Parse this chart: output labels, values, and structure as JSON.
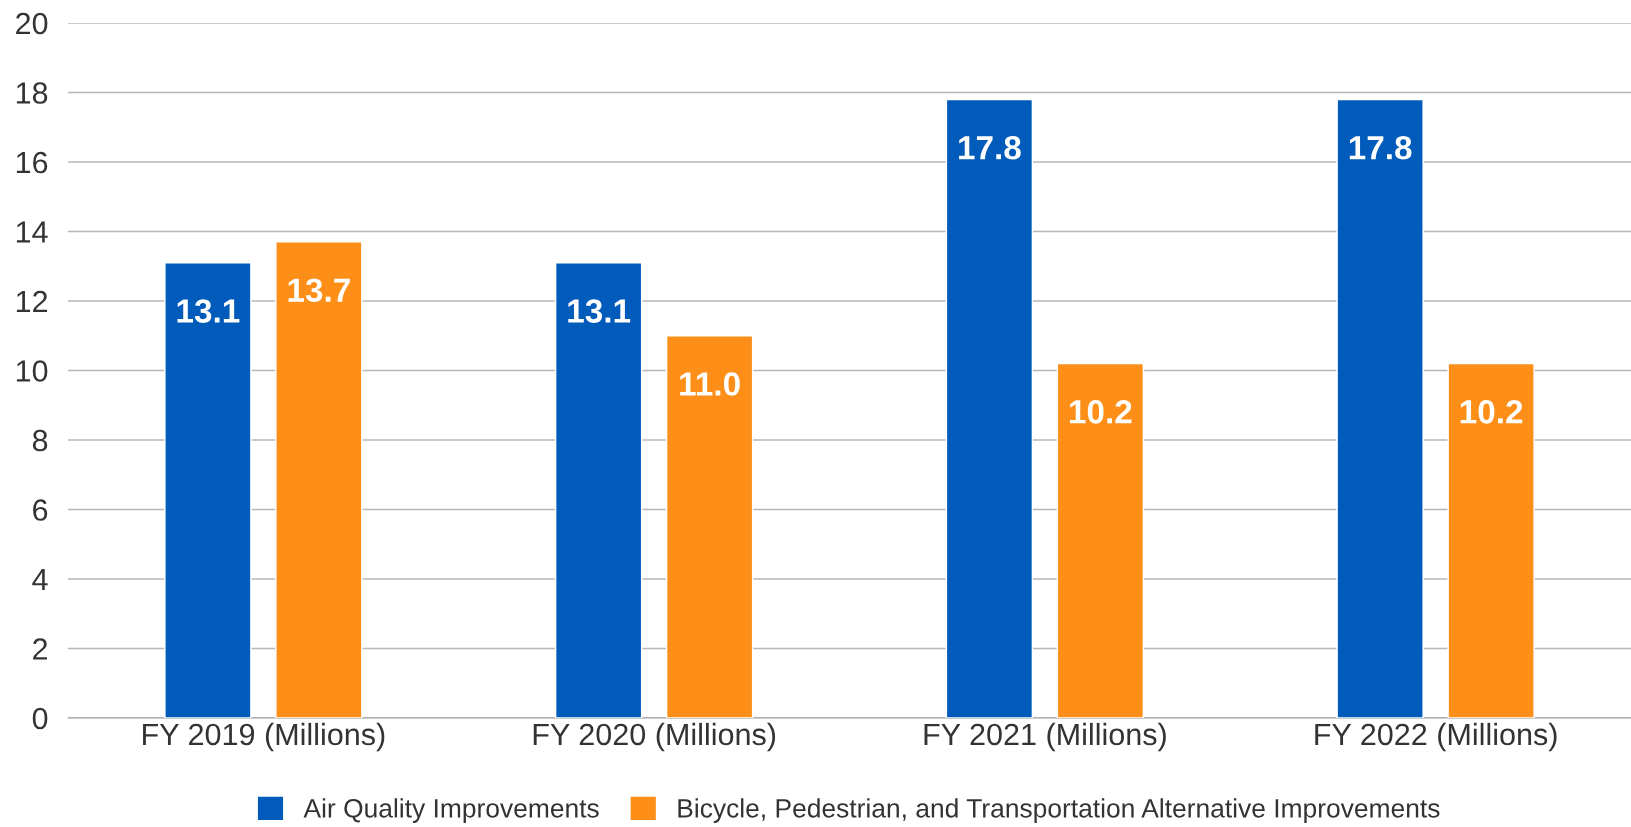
{
  "chart_data": {
    "type": "bar",
    "categories": [
      "FY 2019 (Millions)",
      "FY 2020 (Millions)",
      "FY 2021 (Millions)",
      "FY 2022 (Millions)"
    ],
    "series": [
      {
        "name": "Air Quality Improvements",
        "color": "#005bbb",
        "values": [
          13.1,
          13.1,
          17.8,
          17.8
        ]
      },
      {
        "name": "Bicycle, Pedestrian, and Transportation Alternative Improvements",
        "color": "#fd8f19",
        "values": [
          13.7,
          11.0,
          10.2,
          10.2
        ]
      }
    ],
    "value_labels": [
      [
        "13.1",
        "13.1",
        "17.8",
        "17.8"
      ],
      [
        "13.7",
        "11.0",
        "10.2",
        "10.2"
      ]
    ],
    "ylim": [
      0,
      20
    ],
    "yticks": [
      0,
      2,
      4,
      6,
      8,
      10,
      12,
      14,
      16,
      18,
      20
    ],
    "grid": "y",
    "legend": "bottom"
  }
}
